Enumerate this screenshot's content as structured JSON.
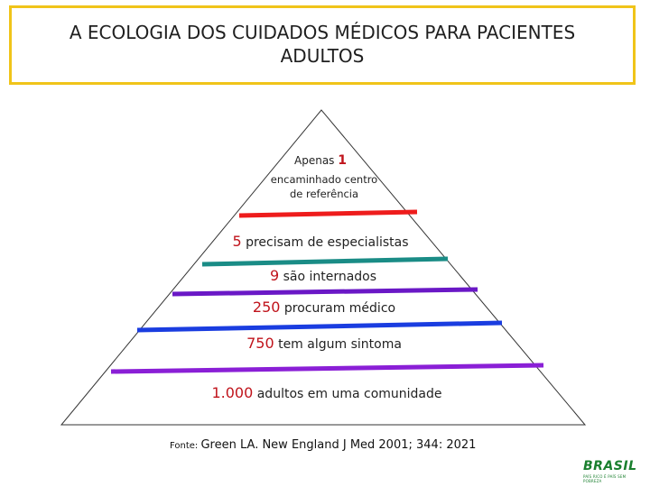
{
  "title": {
    "line1": "A ECOLOGIA DOS CUIDADOS MÉDICOS PARA PACIENTES",
    "line2": "ADULTOS"
  },
  "levels": [
    {
      "number": "1",
      "prefix": "Apenas ",
      "text": "",
      "sub": [
        "encaminhado   centro",
        "de referência"
      ]
    },
    {
      "number": "5",
      "prefix": "",
      "text": " precisam de especialistas"
    },
    {
      "number": "9",
      "prefix": "",
      "text": " são internados"
    },
    {
      "number": "250",
      "prefix": "",
      "text": " procuram médico"
    },
    {
      "number": "750",
      "prefix": "",
      "text": " tem algum sintoma"
    },
    {
      "number": "1.000",
      "prefix": "",
      "text": " adultos em uma comunidade"
    }
  ],
  "line_colors": [
    "#ee1c1c",
    "#1a8c86",
    "#6a18c6",
    "#1a3de0",
    "#8a1fd6"
  ],
  "source": {
    "prefix": "Fonte: ",
    "text": "Green LA. New England J Med 2001; 344: 2021"
  },
  "logo": {
    "brand": "BRASIL",
    "tagline": "PAÍS RICO É PAÍS SEM POBREZA"
  }
}
